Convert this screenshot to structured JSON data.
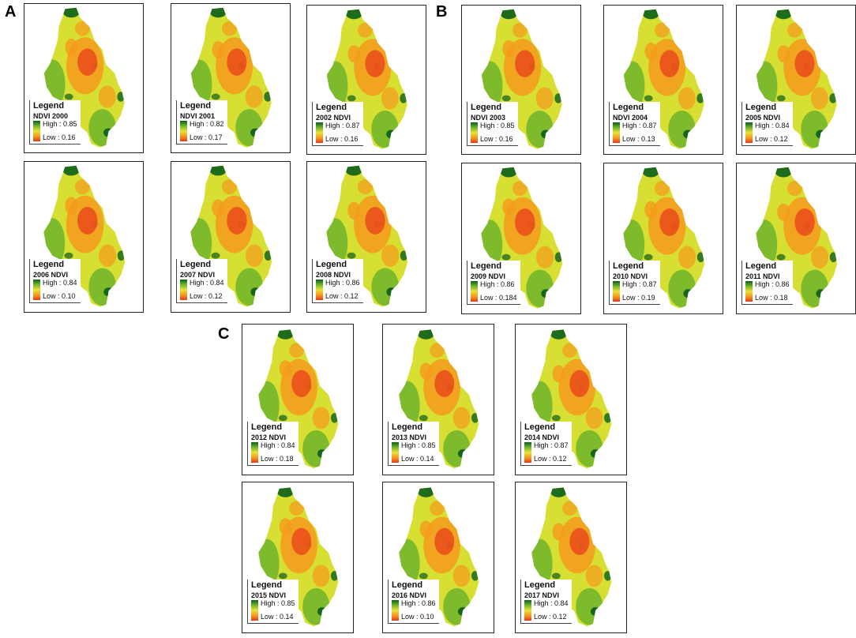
{
  "section_labels": {
    "a": "A",
    "b": "B",
    "c": "C"
  },
  "colors": {
    "high": "#0b5e1a",
    "mid_high": "#6eb52c",
    "mid": "#d7df33",
    "mid_low": "#f59a1c",
    "low": "#e8381a"
  },
  "maps": [
    {
      "legend_title": "Legend",
      "layer": "NDVI 2000",
      "high": "High : 0.85",
      "low": "Low : 0.16"
    },
    {
      "legend_title": "Legend",
      "layer": "NDVI 2001",
      "high": "High : 0.82",
      "low": "Low : 0.17"
    },
    {
      "legend_title": "Legend",
      "layer": "2002 NDVI",
      "high": "High : 0.87",
      "low": "Low : 0.16"
    },
    {
      "legend_title": "Legend",
      "layer": "NDVI  2003",
      "high": "High : 0.85",
      "low": "Low : 0.16"
    },
    {
      "legend_title": "Legend",
      "layer": "NDVI  2004",
      "high": "High : 0.87",
      "low": "Low : 0.13"
    },
    {
      "legend_title": "Legend",
      "layer": "2005 NDVI",
      "high": "High : 0.84",
      "low": "Low : 0.12"
    },
    {
      "legend_title": "Legend",
      "layer": "2006 NDVI",
      "high": "High : 0.84",
      "low": "Low : 0.10"
    },
    {
      "legend_title": "Legend",
      "layer": "2007 NDVI",
      "high": "High : 0.84",
      "low": "Low : 0.12"
    },
    {
      "legend_title": "Legend",
      "layer": "2008 NDVI",
      "high": "High : 0.86",
      "low": "Low : 0.12"
    },
    {
      "legend_title": "Legend",
      "layer": "2009 NDVI",
      "high": "High : 0.86",
      "low": "Low : 0.184"
    },
    {
      "legend_title": "Legend",
      "layer": "2010 NDVI",
      "high": "High : 0.87",
      "low": "Low : 0.19"
    },
    {
      "legend_title": "Legend",
      "layer": "2011 NDVI",
      "high": "High : 0.86",
      "low": "Low : 0.18"
    },
    {
      "legend_title": "Legend",
      "layer": "2012 NDVI",
      "high": "High : 0.84",
      "low": "Low : 0.18"
    },
    {
      "legend_title": "Legend",
      "layer": "2013 NDVI",
      "high": "High : 0.85",
      "low": "Low : 0.14"
    },
    {
      "legend_title": "Legend",
      "layer": "2014 NDVI",
      "high": "High : 0.87",
      "low": "Low : 0.12"
    },
    {
      "legend_title": "Legend",
      "layer": "2015 NDVI",
      "high": "High : 0.85",
      "low": "Low : 0.14"
    },
    {
      "legend_title": "Legend",
      "layer": "2016 NDVI",
      "high": "High : 0.86",
      "low": "Low : 0.10"
    },
    {
      "legend_title": "Legend",
      "layer": "2017 NDVI",
      "high": "High : 0.84",
      "low": "Low : 0.12"
    }
  ]
}
